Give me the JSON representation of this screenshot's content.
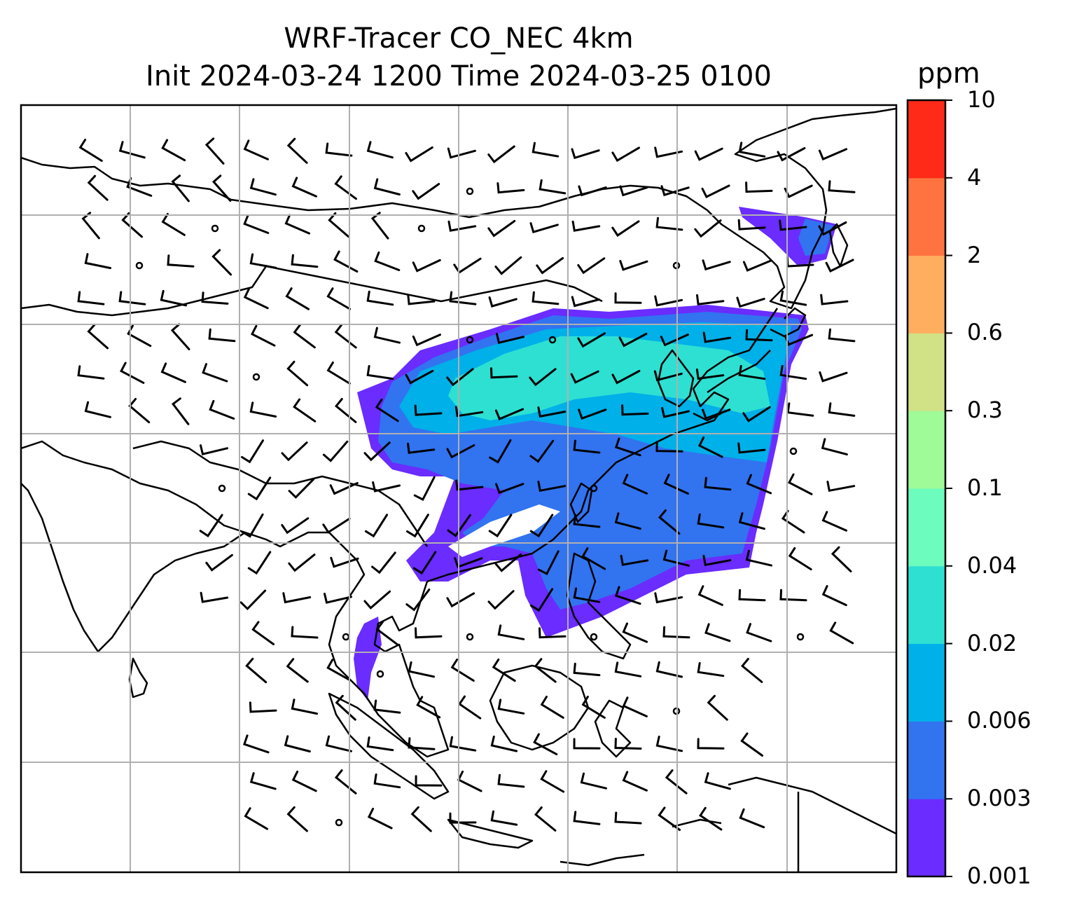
{
  "title": {
    "line1": "WRF-Tracer CO_NEC 4km",
    "line2": "Init 2024-03-24 1200 Time 2024-03-25 0100"
  },
  "colorbar": {
    "label": "ppm",
    "ticks": [
      "0.001",
      "0.003",
      "0.006",
      "0.02",
      "0.04",
      "0.1",
      "0.3",
      "0.6",
      "2",
      "4",
      "10"
    ],
    "colors": [
      "#6a2cff",
      "#3273f0",
      "#00b0e8",
      "#2ee0d2",
      "#6cfcbd",
      "#9ffa98",
      "#d0e285",
      "#ffae60",
      "#ff7340",
      "#ff2a18"
    ]
  },
  "map": {
    "tracer_colors": {
      "level1": "#6a2cff",
      "level2": "#3273f0",
      "level3": "#00b0e8",
      "level4": "#2ee0d2"
    },
    "gridline_color": "#b0b0b0",
    "coastline_color": "#000000",
    "wind_barb_color": "#000000"
  }
}
